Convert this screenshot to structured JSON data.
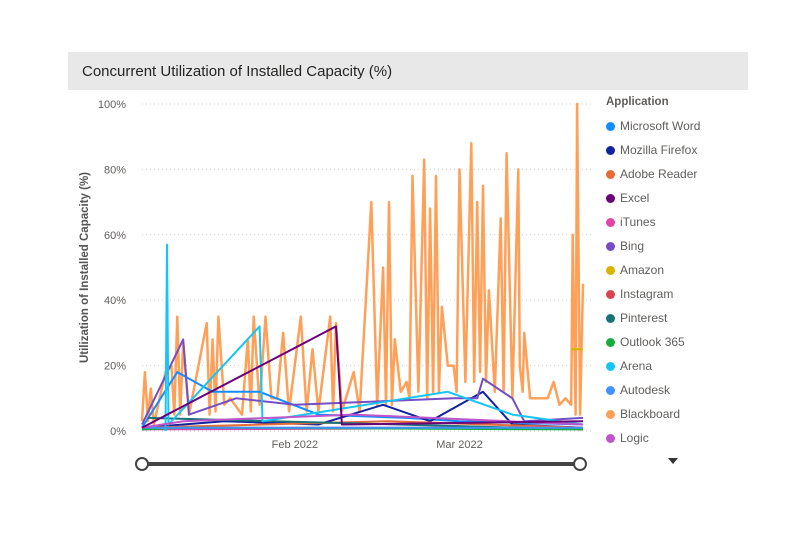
{
  "chart_data": {
    "type": "line",
    "title": "Concurrent Utilization of Installed Capacity (%)",
    "xlabel": "",
    "ylabel": "Utilization of Installed Capacity (%)",
    "ylim": [
      0,
      100
    ],
    "xlim": [
      "2022-01-06",
      "2022-03-22"
    ],
    "y_ticks": [
      "0%",
      "20%",
      "40%",
      "60%",
      "80%",
      "100%"
    ],
    "x_ticks": [
      {
        "date": "2022-02-01",
        "label": "Feb 2022"
      },
      {
        "date": "2022-03-01",
        "label": "Mar 2022"
      }
    ],
    "grid": true,
    "legend_title": "Application",
    "legend_position": "right",
    "series": [
      {
        "name": "Microsoft Word",
        "color": "#118dff",
        "points": [
          [
            "2022-01-06",
            1
          ],
          [
            "2022-01-12",
            18
          ],
          [
            "2022-01-18",
            12
          ],
          [
            "2022-01-26",
            12
          ],
          [
            "2022-02-05",
            5
          ],
          [
            "2022-02-20",
            4
          ],
          [
            "2022-03-01",
            3
          ],
          [
            "2022-03-22",
            2
          ]
        ]
      },
      {
        "name": "Mozilla Firefox",
        "color": "#12239e",
        "points": [
          [
            "2022-01-06",
            1
          ],
          [
            "2022-01-20",
            3
          ],
          [
            "2022-02-05",
            2
          ],
          [
            "2022-02-16",
            8
          ],
          [
            "2022-02-24",
            3
          ],
          [
            "2022-03-05",
            12
          ],
          [
            "2022-03-10",
            2
          ],
          [
            "2022-03-22",
            1
          ]
        ]
      },
      {
        "name": "Adobe Reader",
        "color": "#e66c37",
        "points": [
          [
            "2022-01-06",
            1
          ],
          [
            "2022-02-17",
            3
          ],
          [
            "2022-03-22",
            1
          ]
        ]
      },
      {
        "name": "Excel",
        "color": "#6b007b",
        "points": [
          [
            "2022-01-06",
            1
          ],
          [
            "2022-02-08",
            32
          ],
          [
            "2022-02-09",
            2
          ],
          [
            "2022-03-22",
            3
          ]
        ]
      },
      {
        "name": "iTunes",
        "color": "#e044a7",
        "points": [
          [
            "2022-01-06",
            0.5
          ],
          [
            "2022-03-22",
            1
          ]
        ]
      },
      {
        "name": "Bing",
        "color": "#744ec2",
        "points": [
          [
            "2022-01-06",
            2
          ],
          [
            "2022-01-13",
            28
          ],
          [
            "2022-01-14",
            5
          ],
          [
            "2022-01-22",
            10
          ],
          [
            "2022-02-01",
            8
          ],
          [
            "2022-02-28",
            10
          ],
          [
            "2022-03-04",
            10
          ],
          [
            "2022-03-05",
            16
          ],
          [
            "2022-03-10",
            10
          ],
          [
            "2022-03-12",
            3
          ],
          [
            "2022-03-22",
            4
          ]
        ]
      },
      {
        "name": "Amazon",
        "color": "#d9b300",
        "points": [
          [
            "2022-03-20",
            25
          ],
          [
            "2022-03-22",
            25
          ]
        ]
      },
      {
        "name": "Instagram",
        "color": "#d64550",
        "points": [
          [
            "2022-01-06",
            1
          ],
          [
            "2022-03-22",
            1
          ]
        ]
      },
      {
        "name": "Pinterest",
        "color": "#197278",
        "points": [
          [
            "2022-01-07",
            4
          ],
          [
            "2022-03-22",
            0.5
          ]
        ]
      },
      {
        "name": "Outlook 365",
        "color": "#1aab40",
        "points": [
          [
            "2022-01-06",
            0.5
          ],
          [
            "2022-01-13",
            1
          ],
          [
            "2022-03-22",
            0.5
          ]
        ]
      },
      {
        "name": "Arena",
        "color": "#15c6f4",
        "points": [
          [
            "2022-01-10",
            0
          ],
          [
            "2022-01-10T06",
            57
          ],
          [
            "2022-01-10T12",
            2
          ],
          [
            "2022-01-26",
            32
          ],
          [
            "2022-01-26T12",
            3
          ],
          [
            "2022-02-27",
            12
          ],
          [
            "2022-03-10",
            5
          ],
          [
            "2022-03-22",
            2
          ]
        ]
      },
      {
        "name": "Autodesk",
        "color": "#4092ff",
        "points": [
          [
            "2022-01-06",
            1
          ],
          [
            "2022-03-22",
            1
          ]
        ]
      },
      {
        "name": "Blackboard",
        "color": "#ffa058",
        "points": [
          [
            "2022-01-06",
            3
          ],
          [
            "2022-01-06T12",
            18
          ],
          [
            "2022-01-07",
            3
          ],
          [
            "2022-01-07T12",
            13
          ],
          [
            "2022-01-08",
            2
          ],
          [
            "2022-01-10",
            18
          ],
          [
            "2022-01-11",
            20
          ],
          [
            "2022-01-11T12",
            5
          ],
          [
            "2022-01-12",
            35
          ],
          [
            "2022-01-12T12",
            5
          ],
          [
            "2022-01-13",
            27
          ],
          [
            "2022-01-14",
            5
          ],
          [
            "2022-01-17",
            33
          ],
          [
            "2022-01-17T12",
            5
          ],
          [
            "2022-01-18",
            28
          ],
          [
            "2022-01-18T12",
            6
          ],
          [
            "2022-01-19",
            35
          ],
          [
            "2022-01-20",
            8
          ],
          [
            "2022-01-21",
            10
          ],
          [
            "2022-01-23",
            5
          ],
          [
            "2022-01-24",
            28
          ],
          [
            "2022-01-24T12",
            6
          ],
          [
            "2022-01-25",
            35
          ],
          [
            "2022-01-26",
            8
          ],
          [
            "2022-01-27",
            35
          ],
          [
            "2022-01-28",
            10
          ],
          [
            "2022-01-29",
            10
          ],
          [
            "2022-01-30",
            30
          ],
          [
            "2022-01-31",
            6
          ],
          [
            "2022-02-02",
            35
          ],
          [
            "2022-02-03",
            6
          ],
          [
            "2022-02-04",
            25
          ],
          [
            "2022-02-05",
            6
          ],
          [
            "2022-02-07",
            35
          ],
          [
            "2022-02-07T12",
            6
          ],
          [
            "2022-02-08",
            33
          ],
          [
            "2022-02-09",
            6
          ],
          [
            "2022-02-11",
            18
          ],
          [
            "2022-02-12",
            6
          ],
          [
            "2022-02-14",
            70
          ],
          [
            "2022-02-15",
            8
          ],
          [
            "2022-02-16",
            50
          ],
          [
            "2022-02-16T12",
            8
          ],
          [
            "2022-02-17",
            70
          ],
          [
            "2022-02-17T12",
            8
          ],
          [
            "2022-02-18",
            28
          ],
          [
            "2022-02-19",
            12
          ],
          [
            "2022-02-20",
            15
          ],
          [
            "2022-02-20T12",
            10
          ],
          [
            "2022-02-21",
            78
          ],
          [
            "2022-02-22",
            12
          ],
          [
            "2022-02-23",
            83
          ],
          [
            "2022-02-23T12",
            10
          ],
          [
            "2022-02-24",
            68
          ],
          [
            "2022-02-24T12",
            12
          ],
          [
            "2022-02-25",
            78
          ],
          [
            "2022-02-25T12",
            12
          ],
          [
            "2022-02-26",
            38
          ],
          [
            "2022-02-27",
            20
          ],
          [
            "2022-02-28",
            20
          ],
          [
            "2022-02-28T12",
            12
          ],
          [
            "2022-03-01",
            80
          ],
          [
            "2022-03-02",
            15
          ],
          [
            "2022-03-03",
            88
          ],
          [
            "2022-03-03T12",
            15
          ],
          [
            "2022-03-04",
            70
          ],
          [
            "2022-03-04T12",
            18
          ],
          [
            "2022-03-05",
            75
          ],
          [
            "2022-03-05T12",
            15
          ],
          [
            "2022-03-06",
            43
          ],
          [
            "2022-03-07",
            12
          ],
          [
            "2022-03-08",
            65
          ],
          [
            "2022-03-08T12",
            12
          ],
          [
            "2022-03-09",
            85
          ],
          [
            "2022-03-10",
            10
          ],
          [
            "2022-03-11",
            80
          ],
          [
            "2022-03-11T06",
            20
          ],
          [
            "2022-03-11T18",
            12
          ],
          [
            "2022-03-12",
            30
          ],
          [
            "2022-03-13",
            10
          ],
          [
            "2022-03-16",
            10
          ],
          [
            "2022-03-17",
            15
          ],
          [
            "2022-03-18",
            8
          ],
          [
            "2022-03-19",
            10
          ],
          [
            "2022-03-20",
            8
          ],
          [
            "2022-03-20T06",
            60
          ],
          [
            "2022-03-20T18",
            5
          ],
          [
            "2022-03-21",
            100
          ],
          [
            "2022-03-21T12",
            5
          ],
          [
            "2022-03-22",
            45
          ]
        ]
      },
      {
        "name": "Logic",
        "color": "#bf55ca",
        "points": [
          [
            "2022-01-06",
            1
          ],
          [
            "2022-01-13",
            3
          ],
          [
            "2022-02-11",
            5
          ],
          [
            "2022-03-22",
            2
          ]
        ]
      }
    ]
  }
}
